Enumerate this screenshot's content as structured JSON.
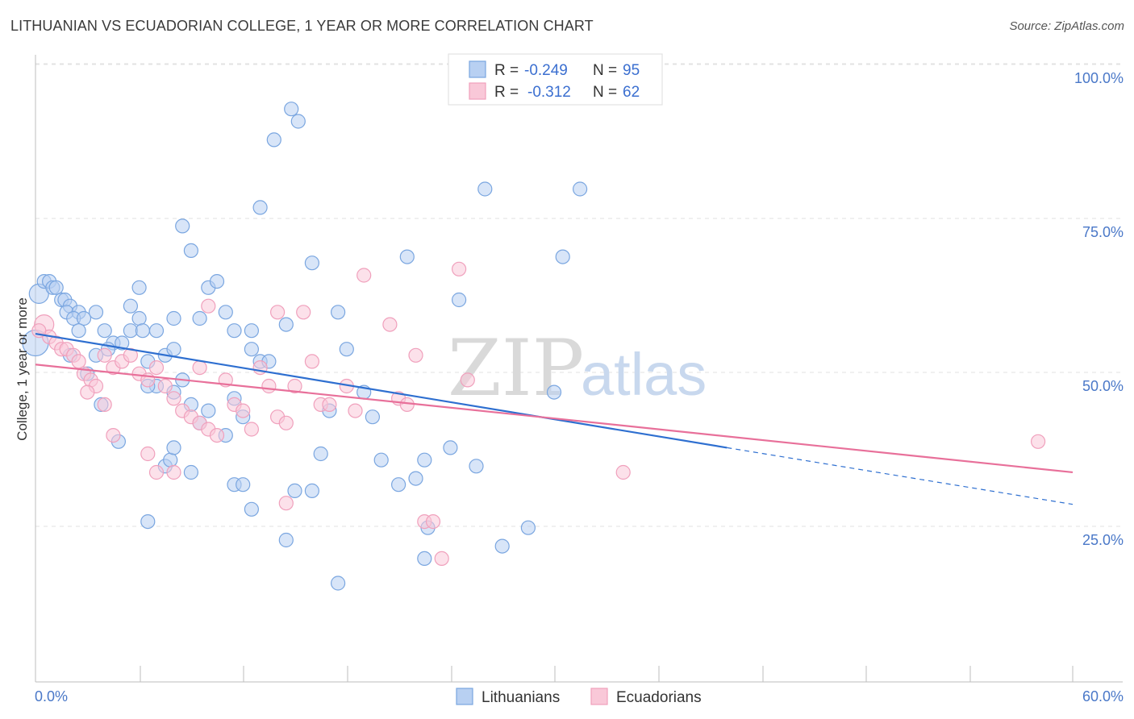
{
  "title": "LITHUANIAN VS ECUADORIAN COLLEGE, 1 YEAR OR MORE CORRELATION CHART",
  "source": "Source: ZipAtlas.com",
  "watermark": {
    "zip": "ZIP",
    "atlas": "atlas"
  },
  "chart_data": {
    "type": "scatter",
    "ylabel": "College, 1 year or more",
    "xlim": [
      0,
      60
    ],
    "ylim": [
      0,
      105
    ],
    "x_ticks": [
      {
        "value": 0,
        "label": "0.0%"
      },
      {
        "value": 60,
        "label": "60.0%"
      }
    ],
    "y_ticks": [
      {
        "value": 25,
        "label": "25.0%"
      },
      {
        "value": 50,
        "label": "50.0%"
      },
      {
        "value": 75,
        "label": "75.0%"
      },
      {
        "value": 100,
        "label": "100.0%"
      }
    ],
    "grid": "horizontal-dashed",
    "legend_position": "top-center",
    "legend": [
      {
        "r_label": "R =",
        "r_value": "-0.249",
        "n_label": "N =",
        "n_value": "95"
      },
      {
        "r_label": "R =",
        "r_value": "-0.312",
        "n_label": "N =",
        "n_value": "62"
      }
    ],
    "series": [
      {
        "name": "Lithuanians",
        "color": "#7aa6e0",
        "fill": "#b8d0f2",
        "line_color": "#2e6fd0",
        "trend": {
          "x0": 0,
          "y0": 58.5,
          "x1": 40,
          "y1": 40,
          "dash_to_x": 60,
          "dash_to_y": 30.8
        },
        "points": [
          [
            0.2,
            65
          ],
          [
            0.5,
            67
          ],
          [
            0.8,
            67
          ],
          [
            1.0,
            66
          ],
          [
            1.2,
            66
          ],
          [
            1.5,
            64
          ],
          [
            1.7,
            64
          ],
          [
            2.0,
            63
          ],
          [
            1.8,
            62
          ],
          [
            2.5,
            62
          ],
          [
            2.2,
            61
          ],
          [
            2.8,
            61
          ],
          [
            3.5,
            62
          ],
          [
            4.0,
            59
          ],
          [
            2.5,
            59
          ],
          [
            4.5,
            57
          ],
          [
            5.0,
            57
          ],
          [
            4.2,
            56
          ],
          [
            6.0,
            61
          ],
          [
            5.5,
            59
          ],
          [
            6.2,
            59
          ],
          [
            7.0,
            59
          ],
          [
            6.5,
            54
          ],
          [
            7.5,
            55
          ],
          [
            8.0,
            56
          ],
          [
            7.0,
            50
          ],
          [
            6.5,
            50
          ],
          [
            8.0,
            49
          ],
          [
            8.5,
            51
          ],
          [
            9.0,
            47
          ],
          [
            10.0,
            46
          ],
          [
            9.5,
            44
          ],
          [
            11.0,
            42
          ],
          [
            11.5,
            48
          ],
          [
            12.0,
            45
          ],
          [
            12.5,
            56
          ],
          [
            13.0,
            54
          ],
          [
            11.5,
            59
          ],
          [
            11.0,
            62
          ],
          [
            10.0,
            66
          ],
          [
            10.5,
            67
          ],
          [
            9.5,
            61
          ],
          [
            8.0,
            61
          ],
          [
            8.5,
            76
          ],
          [
            9.0,
            72
          ],
          [
            6.0,
            66
          ],
          [
            5.5,
            63
          ],
          [
            3.5,
            55
          ],
          [
            3.8,
            47
          ],
          [
            4.8,
            41
          ],
          [
            6.5,
            28
          ],
          [
            7.5,
            37
          ],
          [
            7.8,
            38
          ],
          [
            8.0,
            40
          ],
          [
            9.0,
            36
          ],
          [
            11.5,
            34
          ],
          [
            12.0,
            34
          ],
          [
            12.5,
            30
          ],
          [
            14.5,
            25
          ],
          [
            15.0,
            33
          ],
          [
            16.0,
            33
          ],
          [
            16.5,
            39
          ],
          [
            17.0,
            46
          ],
          [
            18.0,
            56
          ],
          [
            19.0,
            49
          ],
          [
            19.5,
            45
          ],
          [
            20.0,
            38
          ],
          [
            21.0,
            34
          ],
          [
            22.5,
            38
          ],
          [
            22.0,
            35
          ],
          [
            22.5,
            22
          ],
          [
            22.7,
            27
          ],
          [
            24.0,
            40
          ],
          [
            25.5,
            37
          ],
          [
            27.0,
            24
          ],
          [
            28.5,
            27
          ],
          [
            30.0,
            49
          ],
          [
            14.5,
            60
          ],
          [
            16.0,
            70
          ],
          [
            17.5,
            62
          ],
          [
            13.0,
            79
          ],
          [
            13.8,
            90
          ],
          [
            14.8,
            95
          ],
          [
            15.2,
            93
          ],
          [
            26.0,
            82
          ],
          [
            31.5,
            82
          ],
          [
            21.5,
            71
          ],
          [
            30.5,
            71
          ],
          [
            24.5,
            64
          ],
          [
            17.5,
            18
          ],
          [
            13.5,
            54
          ],
          [
            12.5,
            59
          ],
          [
            0.0,
            57
          ],
          [
            2.0,
            55
          ],
          [
            3.0,
            52
          ]
        ]
      },
      {
        "name": "Ecuadorians",
        "color": "#f0a0bc",
        "fill": "#f9c8d8",
        "line_color": "#e8709a",
        "trend": {
          "x0": 0,
          "y0": 53.5,
          "x1": 60,
          "y1": 36
        },
        "points": [
          [
            0.5,
            60
          ],
          [
            0.8,
            58
          ],
          [
            1.2,
            57
          ],
          [
            1.5,
            56
          ],
          [
            1.8,
            56
          ],
          [
            2.2,
            55
          ],
          [
            2.5,
            54
          ],
          [
            2.8,
            52
          ],
          [
            3.2,
            51
          ],
          [
            3.5,
            50
          ],
          [
            4.0,
            55
          ],
          [
            4.5,
            53
          ],
          [
            5.0,
            54
          ],
          [
            5.5,
            55
          ],
          [
            6.0,
            52
          ],
          [
            6.5,
            51
          ],
          [
            7.0,
            53
          ],
          [
            7.5,
            50
          ],
          [
            8.0,
            48
          ],
          [
            8.5,
            46
          ],
          [
            9.0,
            45
          ],
          [
            9.5,
            44
          ],
          [
            10.0,
            43
          ],
          [
            10.5,
            42
          ],
          [
            11.0,
            51
          ],
          [
            11.5,
            47
          ],
          [
            12.0,
            46
          ],
          [
            12.5,
            43
          ],
          [
            13.0,
            53
          ],
          [
            13.5,
            50
          ],
          [
            14.0,
            45
          ],
          [
            14.5,
            44
          ],
          [
            15.0,
            50
          ],
          [
            16.0,
            54
          ],
          [
            16.5,
            47
          ],
          [
            17.0,
            47
          ],
          [
            18.0,
            50
          ],
          [
            18.5,
            46
          ],
          [
            19.0,
            68
          ],
          [
            20.5,
            60
          ],
          [
            21.0,
            48
          ],
          [
            21.5,
            47
          ],
          [
            22.0,
            55
          ],
          [
            22.5,
            28
          ],
          [
            23.0,
            28
          ],
          [
            23.5,
            22
          ],
          [
            25.0,
            51
          ],
          [
            24.5,
            69
          ],
          [
            14.0,
            62
          ],
          [
            15.5,
            62
          ],
          [
            10.0,
            63
          ],
          [
            9.5,
            53
          ],
          [
            4.0,
            47
          ],
          [
            4.5,
            42
          ],
          [
            3.0,
            49
          ],
          [
            6.5,
            39
          ],
          [
            7.0,
            36
          ],
          [
            8.0,
            36
          ],
          [
            14.5,
            31
          ],
          [
            34.0,
            36
          ],
          [
            58.0,
            41
          ],
          [
            0.2,
            59
          ]
        ]
      }
    ]
  }
}
